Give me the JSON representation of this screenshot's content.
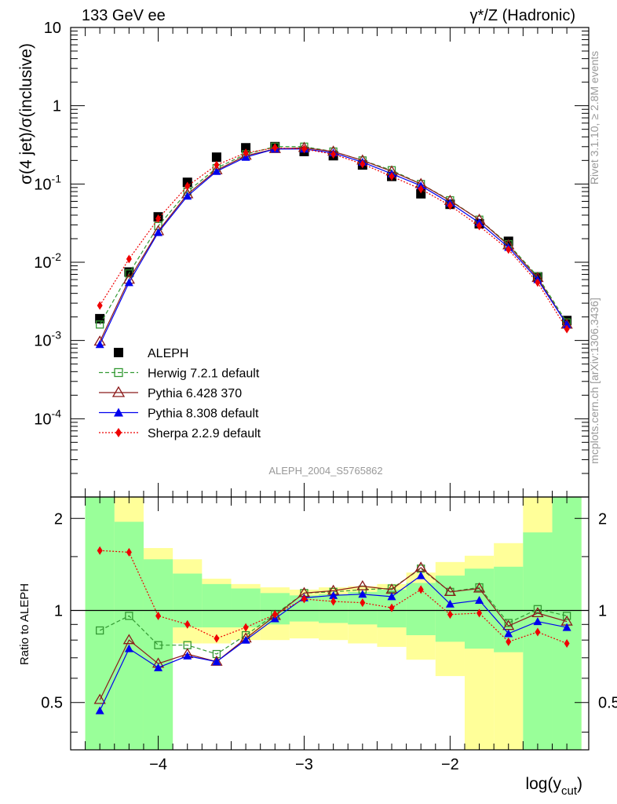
{
  "header": {
    "left_title": "133 GeV ee",
    "right_title": "γ*/Z (Hadronic)"
  },
  "side_labels": {
    "rivet": "Rivet 3.1.10, ≥ 2.8M events",
    "mcplots": "mcplots.cern.ch [arXiv:1306.3436]"
  },
  "analysis_id": "ALEPH_2004_S5765862",
  "colors": {
    "data": "#000000",
    "herwig": "#339933",
    "pythia6": "#8b1a1a",
    "pythia8": "#0000ee",
    "sherpa": "#ee0000",
    "band_inner": "#99ff99",
    "band_outer": "#ffff99"
  },
  "chart_data": [
    {
      "type": "scatter",
      "panel": "main",
      "ylabel": "σ(4 jet)/σ(inclusive)",
      "xlabel": "log(y_cut)",
      "yscale": "log",
      "ylim": [
        1e-05,
        10
      ],
      "xlim": [
        -4.6,
        -1.05
      ],
      "y_tick_labels": [
        "10",
        "1",
        "10^-1",
        "10^-2",
        "10^-3",
        "10^-4"
      ],
      "legend_position": "bottom-left",
      "x": [
        -4.4,
        -4.2,
        -4.0,
        -3.8,
        -3.6,
        -3.4,
        -3.2,
        -3.0,
        -2.8,
        -2.6,
        -2.4,
        -2.2,
        -2.0,
        -1.8,
        -1.6,
        -1.4,
        -1.2
      ],
      "series": [
        {
          "name": "ALEPH",
          "key": "data",
          "marker": "square-filled",
          "line": "none",
          "values": [
            0.0019,
            0.0075,
            0.038,
            0.105,
            0.22,
            0.29,
            0.3,
            0.26,
            0.23,
            0.175,
            0.125,
            0.075,
            0.055,
            0.031,
            0.0185,
            0.0065,
            0.0018
          ]
        },
        {
          "name": "Herwig 7.2.1 default",
          "key": "herwig",
          "marker": "square-open",
          "line": "dashed",
          "values": [
            0.0016,
            0.0072,
            0.029,
            0.08,
            0.16,
            0.24,
            0.3,
            0.3,
            0.26,
            0.2,
            0.15,
            0.1,
            0.062,
            0.035,
            0.017,
            0.0066,
            0.0017
          ]
        },
        {
          "name": "Pythia 6.428 370",
          "key": "pythia6",
          "marker": "triangle-open",
          "line": "solid",
          "values": [
            0.00097,
            0.006,
            0.025,
            0.074,
            0.15,
            0.23,
            0.28,
            0.29,
            0.26,
            0.2,
            0.145,
            0.1,
            0.061,
            0.035,
            0.0165,
            0.0063,
            0.0016
          ]
        },
        {
          "name": "Pythia 8.308 default",
          "key": "pythia8",
          "marker": "triangle-filled",
          "line": "solid",
          "values": [
            0.00089,
            0.0055,
            0.024,
            0.07,
            0.145,
            0.22,
            0.28,
            0.28,
            0.25,
            0.19,
            0.135,
            0.095,
            0.057,
            0.032,
            0.0155,
            0.006,
            0.0016
          ]
        },
        {
          "name": "Sherpa 2.2.9 default",
          "key": "sherpa",
          "marker": "diamond-filled",
          "line": "dotted",
          "values": [
            0.0028,
            0.011,
            0.036,
            0.094,
            0.175,
            0.25,
            0.29,
            0.28,
            0.24,
            0.18,
            0.125,
            0.086,
            0.053,
            0.029,
            0.0145,
            0.0055,
            0.0014
          ]
        }
      ]
    },
    {
      "type": "line",
      "panel": "ratio",
      "ylabel": "Ratio to ALEPH",
      "xlabel": "log(y_cut)",
      "yscale": "log",
      "ylim": [
        0.35,
        2.35
      ],
      "y_ticks": [
        0.5,
        1,
        2
      ],
      "x_ticks": [
        -4,
        -3,
        -2
      ],
      "x": [
        -4.4,
        -4.2,
        -4.0,
        -3.8,
        -3.6,
        -3.4,
        -3.2,
        -3.0,
        -2.8,
        -2.6,
        -2.4,
        -2.2,
        -2.0,
        -1.8,
        -1.6,
        -1.4,
        -1.2
      ],
      "reference_line": 1,
      "band_edges": [
        -4.5,
        -4.3,
        -4.1,
        -3.9,
        -3.7,
        -3.5,
        -3.3,
        -3.1,
        -2.9,
        -2.7,
        -2.5,
        -2.3,
        -2.1,
        -1.9,
        -1.7,
        -1.5,
        -1.3,
        -1.1
      ],
      "band_inner": [
        [
          0.35,
          2.35
        ],
        [
          0.35,
          1.95
        ],
        [
          0.35,
          1.47
        ],
        [
          0.88,
          1.32
        ],
        [
          0.88,
          1.22
        ],
        [
          0.88,
          1.18
        ],
        [
          0.9,
          1.14
        ],
        [
          0.92,
          1.12
        ],
        [
          0.91,
          1.13
        ],
        [
          0.9,
          1.15
        ],
        [
          0.88,
          1.17
        ],
        [
          0.83,
          1.23
        ],
        [
          0.79,
          1.3
        ],
        [
          0.75,
          1.37
        ],
        [
          0.73,
          1.39
        ],
        [
          0.35,
          1.8
        ],
        [
          0.35,
          2.35
        ]
      ],
      "band_outer": [
        [
          0.35,
          2.35
        ],
        [
          0.35,
          2.35
        ],
        [
          0.35,
          1.6
        ],
        [
          0.78,
          1.47
        ],
        [
          0.78,
          1.27
        ],
        [
          0.8,
          1.22
        ],
        [
          0.8,
          1.19
        ],
        [
          0.81,
          1.17
        ],
        [
          0.8,
          1.19
        ],
        [
          0.78,
          1.2
        ],
        [
          0.76,
          1.22
        ],
        [
          0.69,
          1.33
        ],
        [
          0.61,
          1.44
        ],
        [
          0.35,
          1.51
        ],
        [
          0.35,
          1.66
        ],
        [
          0.35,
          2.35
        ],
        [
          0.35,
          2.35
        ]
      ],
      "series": [
        {
          "name": "Herwig 7.2.1 default",
          "key": "herwig",
          "marker": "square-open",
          "line": "dashed",
          "values": [
            0.86,
            0.96,
            0.77,
            0.77,
            0.72,
            0.83,
            0.97,
            1.14,
            1.15,
            1.17,
            1.18,
            1.37,
            1.15,
            1.19,
            0.91,
            1.01,
            0.96
          ]
        },
        {
          "name": "Pythia 6.428 370",
          "key": "pythia6",
          "marker": "triangle-open",
          "line": "solid",
          "values": [
            0.51,
            0.8,
            0.67,
            0.72,
            0.68,
            0.81,
            0.96,
            1.14,
            1.16,
            1.2,
            1.17,
            1.38,
            1.15,
            1.18,
            0.89,
            0.98,
            0.92
          ]
        },
        {
          "name": "Pythia 8.308 default",
          "key": "pythia8",
          "marker": "triangle-filled",
          "line": "solid",
          "values": [
            0.47,
            0.75,
            0.65,
            0.71,
            0.68,
            0.8,
            0.94,
            1.1,
            1.12,
            1.13,
            1.11,
            1.3,
            1.05,
            1.08,
            0.84,
            0.92,
            0.88
          ]
        },
        {
          "name": "Sherpa 2.2.9 default",
          "key": "sherpa",
          "marker": "diamond-filled",
          "line": "dotted",
          "values": [
            1.57,
            1.55,
            0.96,
            0.9,
            0.81,
            0.88,
            0.97,
            1.09,
            1.07,
            1.06,
            1.02,
            1.17,
            0.97,
            0.98,
            0.79,
            0.85,
            0.78
          ]
        }
      ]
    }
  ]
}
